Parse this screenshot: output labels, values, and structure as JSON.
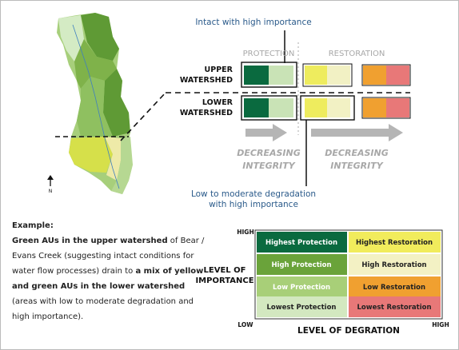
{
  "map": {
    "north": "N"
  },
  "callouts": {
    "top": "Intact with high importance",
    "bottom": [
      "Low to moderate degradation",
      "with high importance"
    ]
  },
  "columns": [
    "PROTECTION",
    "RESTORATION"
  ],
  "rows": [
    [
      "UPPER",
      "WATERSHED"
    ],
    [
      "LOWER",
      "WATERSHED"
    ]
  ],
  "arrow_labels": [
    [
      "DECREASING",
      "INTEGRITY"
    ],
    [
      "DECREASING",
      "INTEGRITY"
    ]
  ],
  "example": {
    "heading": "Example:",
    "segments": [
      "Green AUs in the upper watershed",
      "of Bear / Evans Creek (suggesting intact conditions for water flow processes) drain to",
      "a mix of yellow and green AUs in the lower watershed",
      "(areas with low to moderate degradation and high importance)."
    ]
  },
  "matrix": [
    [
      "Highest Protection",
      "Highest Restoration"
    ],
    [
      "High Protection",
      "High Restoration"
    ],
    [
      "Low Protection",
      "Low Restoration"
    ],
    [
      "Lowest Protection",
      "Lowest Restoration"
    ]
  ],
  "axes": {
    "y_high": "HIGH",
    "x_low": "LOW",
    "x_high": "HIGH",
    "y_title": [
      "LEVEL OF",
      "IMPORTANCE"
    ],
    "x_title": "LEVEL OF DEGRATION"
  }
}
